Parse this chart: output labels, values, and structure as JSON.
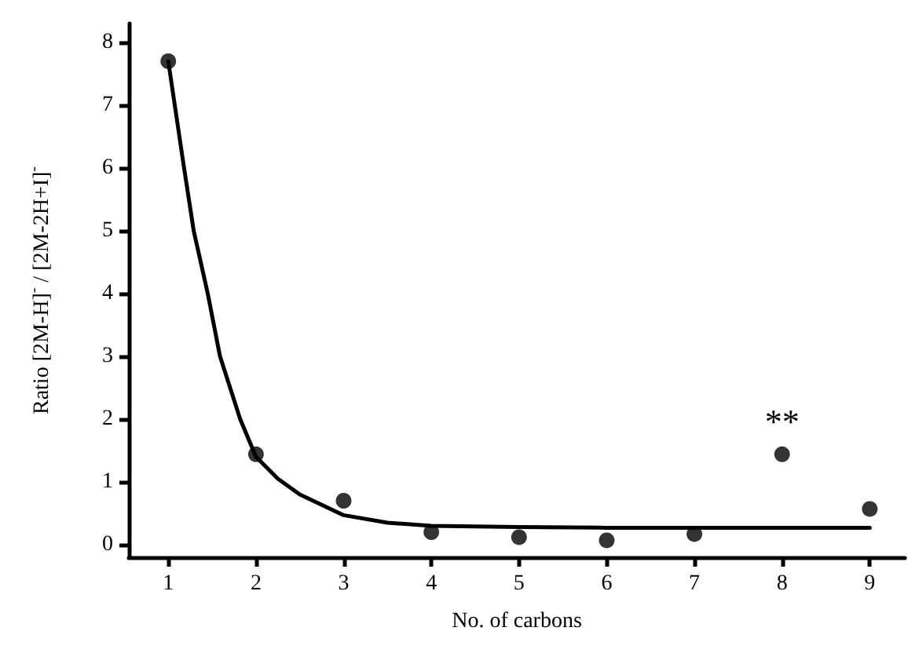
{
  "chart_data": {
    "type": "scatter",
    "xlabel": "No. of carbons",
    "ylabel": "Ratio [2M-H]$^{-}$ / [2M-2H+I]$^{-}$",
    "xlim": [
      0.55,
      9.4
    ],
    "xticks": [
      1,
      2,
      3,
      4,
      5,
      6,
      7,
      8,
      9
    ],
    "ylim": [
      -0.2,
      8.3
    ],
    "yticks": [
      0,
      1,
      2,
      3,
      4,
      5,
      6,
      7,
      8
    ],
    "grid": false,
    "series": [
      {
        "color": "#000000",
        "marker": "circle",
        "x": [
          1,
          2,
          3,
          4,
          5,
          6,
          7,
          8,
          9
        ],
        "values": [
          7.7,
          1.44,
          0.7,
          0.2,
          0.12,
          0.07,
          0.17,
          1.44,
          0.57
        ]
      },
      {
        "type": "line",
        "color": "#000000",
        "marker": "none",
        "line_style": "solid",
        "x": [
          1,
          1.18,
          1.29,
          1.45,
          1.59,
          1.82,
          2,
          2.25,
          2.5,
          3,
          3.5,
          4,
          5,
          6,
          7,
          8,
          9
        ],
        "values": [
          7.7,
          6,
          5,
          4,
          3,
          2,
          1.4,
          1.05,
          0.8,
          0.47,
          0.35,
          0.3,
          0.28,
          0.27,
          0.27,
          0.27,
          0.27
        ]
      }
    ],
    "annotations": [
      {
        "text": "**",
        "x": 8,
        "y": 1.44
      }
    ]
  }
}
